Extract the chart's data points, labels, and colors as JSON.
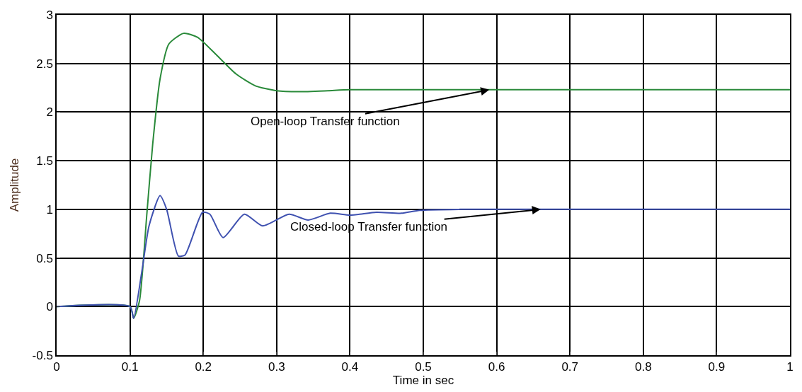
{
  "chart_data": {
    "type": "line",
    "xlabel": "Time in sec",
    "ylabel": "Amplitude",
    "series": [
      {
        "color": "#2a8a3a",
        "x": [
          0,
          0.1,
          0.105,
          0.113,
          0.123,
          0.131,
          0.141,
          0.153,
          0.173,
          0.192,
          0.219,
          0.245,
          0.271,
          0.3,
          0.33,
          0.37,
          0.4,
          1
        ],
        "values": [
          0,
          0,
          -0.12,
          0.06,
          0.95,
          1.67,
          2.34,
          2.7,
          2.81,
          2.77,
          2.58,
          2.39,
          2.27,
          2.22,
          2.21,
          2.22,
          2.23,
          2.23
        ]
      },
      {
        "color": "#3f51b0",
        "x": [
          0,
          0.1,
          0.105,
          0.116,
          0.126,
          0.141,
          0.15,
          0.166,
          0.175,
          0.199,
          0.209,
          0.227,
          0.256,
          0.281,
          0.317,
          0.343,
          0.373,
          0.4,
          0.436,
          0.47,
          0.495,
          0.55,
          1
        ],
        "values": [
          0,
          0,
          -0.12,
          0.35,
          0.83,
          1.14,
          1.0,
          0.52,
          0.53,
          0.97,
          0.95,
          0.71,
          0.95,
          0.83,
          0.95,
          0.89,
          0.96,
          0.94,
          0.97,
          0.96,
          0.99,
          1.0,
          1.0
        ]
      }
    ],
    "annotations": [
      {
        "text": "Open-loop Transfer function",
        "x": 0.59,
        "y": 2.23
      },
      {
        "text": "Closed-loop Transfer function",
        "x": 0.66,
        "y": 1.0
      }
    ],
    "xlim": [
      0,
      1
    ],
    "xticks": [
      0,
      0.1,
      0.2,
      0.3,
      0.4,
      0.5,
      0.6,
      0.7,
      0.8,
      0.9,
      1
    ],
    "ylim": [
      -0.5,
      3
    ],
    "yticks": [
      -0.5,
      0,
      0.5,
      1,
      1.5,
      2,
      2.5,
      3
    ],
    "grid": true,
    "line_style": "solid"
  }
}
